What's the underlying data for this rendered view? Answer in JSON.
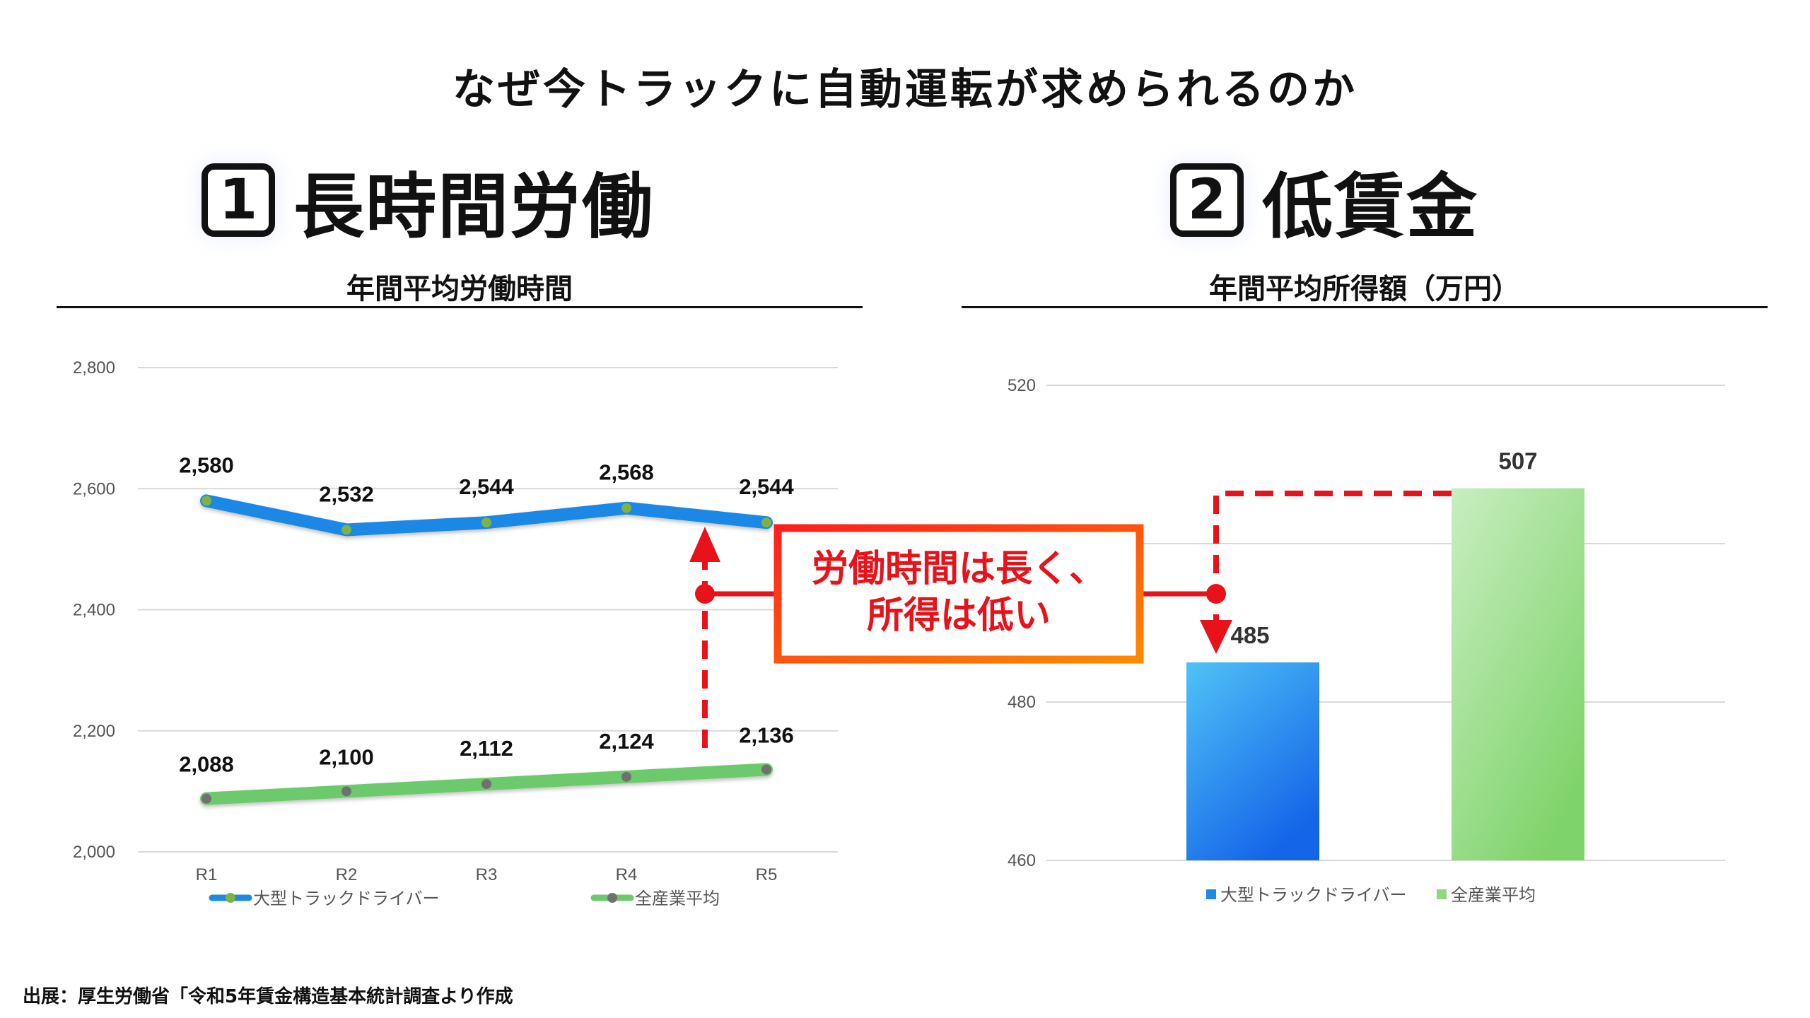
{
  "main_title": "なぜ今トラックに自動運転が求められるのか",
  "sections": [
    {
      "number": "1",
      "heading": "長時間労働"
    },
    {
      "number": "2",
      "heading": "低賃金"
    }
  ],
  "callout": {
    "line1": "労働時間は長く、",
    "line2": "所得は低い"
  },
  "source": "出展：厚生労働省「令和5年賃金構造基本統計調査より作成",
  "colors": {
    "blue": "#1e88e5",
    "green": "#6cc96c",
    "red": "#e8121a",
    "orange": "#f7600f"
  },
  "chart_data": [
    {
      "type": "line",
      "title": "年間平均労働時間",
      "categories": [
        "R1",
        "R2",
        "R3",
        "R4",
        "R5"
      ],
      "series": [
        {
          "name": "大型トラックドライバー",
          "values": [
            2580,
            2532,
            2544,
            2568,
            2544
          ],
          "labels": [
            "2,580",
            "2,532",
            "2,544",
            "2,568",
            "2,544"
          ]
        },
        {
          "name": "全産業平均",
          "values": [
            2088,
            2100,
            2112,
            2124,
            2136
          ],
          "labels": [
            "2,088",
            "2,100",
            "2,112",
            "2,124",
            "2,136"
          ]
        }
      ],
      "yticks": [
        2000,
        2200,
        2400,
        2600,
        2800
      ],
      "ytick_labels": [
        "2,000",
        "2,200",
        "2,400",
        "2,600",
        "2,800"
      ],
      "ylim": [
        2000,
        2800
      ],
      "grid": true,
      "legend": "bottom"
    },
    {
      "type": "bar",
      "title": "年間平均所得額（万円）",
      "categories": [
        "大型トラックドライバー",
        "全産業平均"
      ],
      "values": [
        485,
        507
      ],
      "labels": [
        "485",
        "507"
      ],
      "yticks": [
        460,
        480,
        520
      ],
      "ytick_labels": [
        "460",
        "480",
        "520"
      ],
      "ylim": [
        460,
        520
      ],
      "grid": true,
      "legend": "bottom"
    }
  ]
}
